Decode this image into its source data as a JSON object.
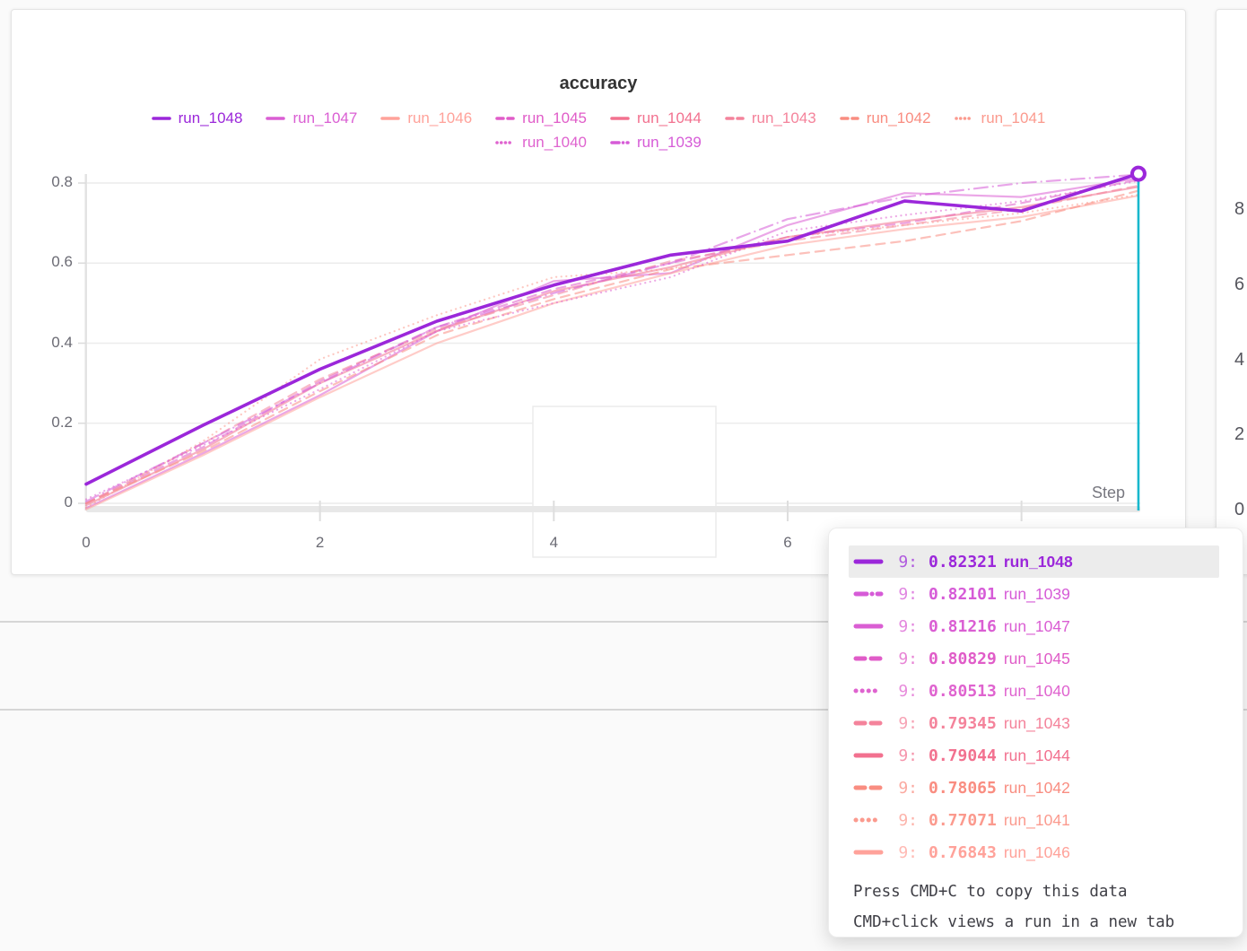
{
  "page": {
    "background": "#fafafa"
  },
  "chart_data": {
    "type": "line",
    "title": "accuracy",
    "xlabel": "Step",
    "ylabel": "",
    "xlim": [
      0,
      9
    ],
    "ylim": [
      -0.02,
      0.84
    ],
    "grid": true,
    "legend_position": "top-center",
    "x": [
      0,
      1,
      2,
      3,
      4,
      5,
      6,
      7,
      8,
      9
    ],
    "x_ticks": [
      {
        "value": 0,
        "label": "0",
        "stub": false
      },
      {
        "value": 2,
        "label": "2",
        "stub": true
      },
      {
        "value": 4,
        "label": "4",
        "stub": true
      },
      {
        "value": 6,
        "label": "6",
        "stub": true
      },
      {
        "value": 8,
        "label": "",
        "stub": true
      }
    ],
    "y_ticks": [
      {
        "value": 0,
        "label": "0"
      },
      {
        "value": 0.2,
        "label": "0.2"
      },
      {
        "value": 0.4,
        "label": "0.4"
      },
      {
        "value": 0.6,
        "label": "0.6"
      },
      {
        "value": 0.8,
        "label": "0.8"
      }
    ],
    "series": [
      {
        "name": "run_1048",
        "color": "#9b27da",
        "dash": "solid",
        "highlight": true,
        "values": [
          0.048,
          0.195,
          0.335,
          0.455,
          0.545,
          0.62,
          0.655,
          0.755,
          0.73,
          0.82321
        ],
        "final": 0.82321
      },
      {
        "name": "run_1047",
        "color": "#da5ed3",
        "dash": "solid",
        "highlight": false,
        "values": [
          -0.012,
          0.125,
          0.27,
          0.43,
          0.555,
          0.575,
          0.695,
          0.775,
          0.765,
          0.81216
        ],
        "final": 0.81216
      },
      {
        "name": "run_1046",
        "color": "#ffa29a",
        "dash": "solid",
        "highlight": false,
        "values": [
          -0.015,
          0.12,
          0.265,
          0.4,
          0.5,
          0.575,
          0.645,
          0.685,
          0.715,
          0.76843
        ],
        "final": 0.76843
      },
      {
        "name": "run_1045",
        "color": "#e05cc8",
        "dash": "dashed",
        "highlight": false,
        "values": [
          0.0,
          0.14,
          0.305,
          0.44,
          0.535,
          0.6,
          0.665,
          0.7,
          0.75,
          0.80829
        ],
        "final": 0.80829
      },
      {
        "name": "run_1044",
        "color": "#f2718f",
        "dash": "solid",
        "highlight": false,
        "values": [
          -0.005,
          0.135,
          0.3,
          0.43,
          0.53,
          0.59,
          0.665,
          0.705,
          0.74,
          0.79044
        ],
        "final": 0.79044
      },
      {
        "name": "run_1043",
        "color": "#f4839b",
        "dash": "dashed",
        "highlight": false,
        "values": [
          0.0,
          0.15,
          0.31,
          0.435,
          0.52,
          0.605,
          0.655,
          0.695,
          0.735,
          0.79345
        ],
        "final": 0.79345
      },
      {
        "name": "run_1042",
        "color": "#f98d81",
        "dash": "dashed",
        "highlight": false,
        "values": [
          0.0,
          0.13,
          0.28,
          0.42,
          0.51,
          0.585,
          0.62,
          0.655,
          0.705,
          0.78065
        ],
        "final": 0.78065
      },
      {
        "name": "run_1041",
        "color": "#fb9a8e",
        "dash": "dotted",
        "highlight": false,
        "values": [
          -0.01,
          0.155,
          0.36,
          0.47,
          0.565,
          0.585,
          0.665,
          0.695,
          0.725,
          0.77071
        ],
        "final": 0.77071
      },
      {
        "name": "run_1040",
        "color": "#df63cf",
        "dash": "dotted",
        "highlight": false,
        "values": [
          0.01,
          0.145,
          0.285,
          0.43,
          0.5,
          0.565,
          0.68,
          0.72,
          0.755,
          0.80513
        ],
        "final": 0.80513
      },
      {
        "name": "run_1039",
        "color": "#d65bd7",
        "dash": "dashdot",
        "highlight": false,
        "values": [
          0.005,
          0.15,
          0.3,
          0.44,
          0.525,
          0.6,
          0.71,
          0.765,
          0.8,
          0.82101
        ],
        "final": 0.82101
      }
    ],
    "legend_rows": [
      [
        "run_1048",
        "run_1047",
        "run_1046",
        "run_1045",
        "run_1044",
        "run_1043",
        "run_1042",
        "run_1041"
      ],
      [
        "run_1040",
        "run_1039"
      ]
    ],
    "crosshair": {
      "step": 9,
      "color": "#18b8cd"
    }
  },
  "tooltip": {
    "rows": [
      {
        "step": "9:",
        "value": "0.82321",
        "run": "run_1048",
        "highlight": true
      },
      {
        "step": "9:",
        "value": "0.82101",
        "run": "run_1039",
        "highlight": false
      },
      {
        "step": "9:",
        "value": "0.81216",
        "run": "run_1047",
        "highlight": false
      },
      {
        "step": "9:",
        "value": "0.80829",
        "run": "run_1045",
        "highlight": false
      },
      {
        "step": "9:",
        "value": "0.80513",
        "run": "run_1040",
        "highlight": false
      },
      {
        "step": "9:",
        "value": "0.79345",
        "run": "run_1043",
        "highlight": false
      },
      {
        "step": "9:",
        "value": "0.79044",
        "run": "run_1044",
        "highlight": false
      },
      {
        "step": "9:",
        "value": "0.78065",
        "run": "run_1042",
        "highlight": false
      },
      {
        "step": "9:",
        "value": "0.77071",
        "run": "run_1041",
        "highlight": false
      },
      {
        "step": "9:",
        "value": "0.76843",
        "run": "run_1046",
        "highlight": false
      }
    ],
    "footer": [
      "Press CMD+C to copy this data",
      "CMD+click views a run in a new tab"
    ]
  },
  "right_panel": {
    "y_tick_labels": [
      "8",
      "6",
      "4",
      "2",
      "0"
    ]
  }
}
